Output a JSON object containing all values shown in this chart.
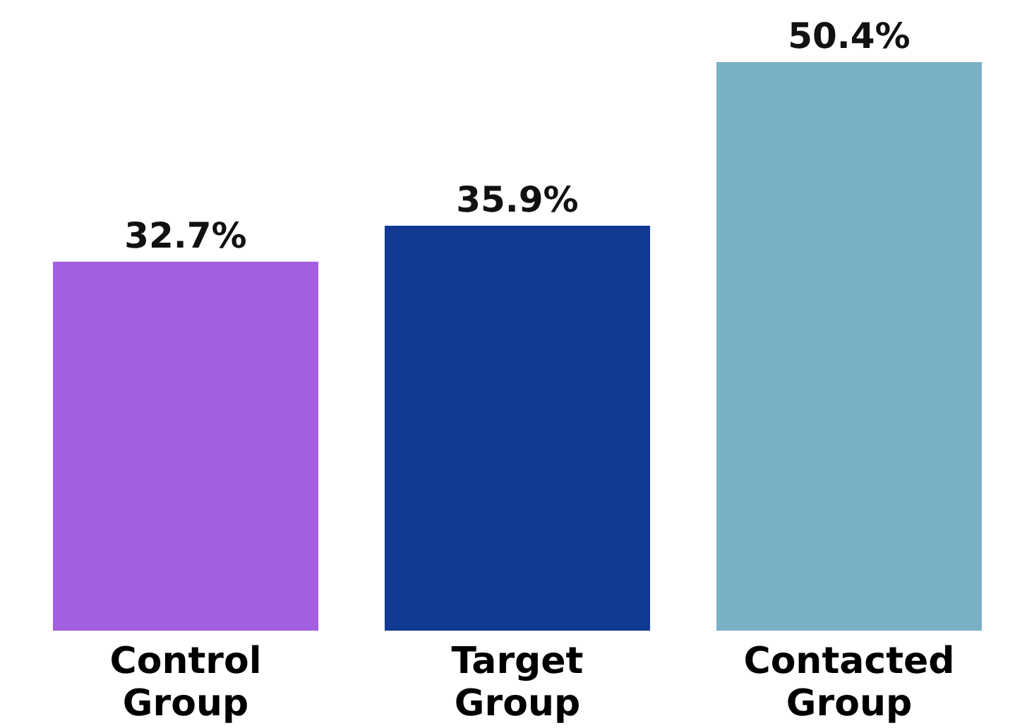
{
  "chart_data": {
    "type": "bar",
    "categories": [
      "Control Group",
      "Target Group",
      "Contacted Group"
    ],
    "values": [
      32.7,
      35.9,
      50.4
    ],
    "colors": [
      "#a45ee0",
      "#123a94",
      "#7ab0c6"
    ],
    "value_labels": [
      "32.7%",
      "35.9%",
      "50.4%"
    ]
  }
}
